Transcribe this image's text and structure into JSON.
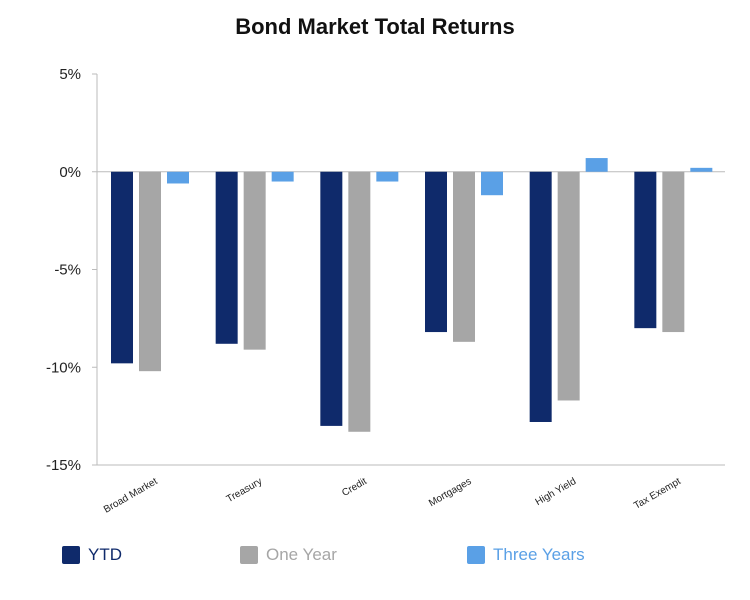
{
  "chart_data": {
    "type": "bar",
    "title": "Bond Market Total Returns",
    "categories": [
      "Broad Market",
      "Treasury",
      "Credit",
      "Mortgages",
      "High Yield",
      "Tax Exempt"
    ],
    "series": [
      {
        "name": "YTD",
        "color": "#0f2a6b",
        "values": [
          -9.8,
          -8.8,
          -13.0,
          -8.2,
          -12.8,
          -8.0
        ]
      },
      {
        "name": "One Year",
        "color": "#a6a6a6",
        "values": [
          -10.2,
          -9.1,
          -13.3,
          -8.7,
          -11.7,
          -8.2
        ]
      },
      {
        "name": "Three Years",
        "color": "#5aa0e6",
        "values": [
          -0.6,
          -0.5,
          -0.5,
          -1.2,
          0.7,
          0.2
        ]
      }
    ],
    "ylim": [
      -15,
      5
    ],
    "yticks": [
      5,
      0,
      -5,
      -10,
      -15
    ],
    "ytick_labels": [
      "5%",
      "0%",
      "-5%",
      "-10%",
      "-15%"
    ],
    "legend_position": "bottom",
    "grid": false
  }
}
